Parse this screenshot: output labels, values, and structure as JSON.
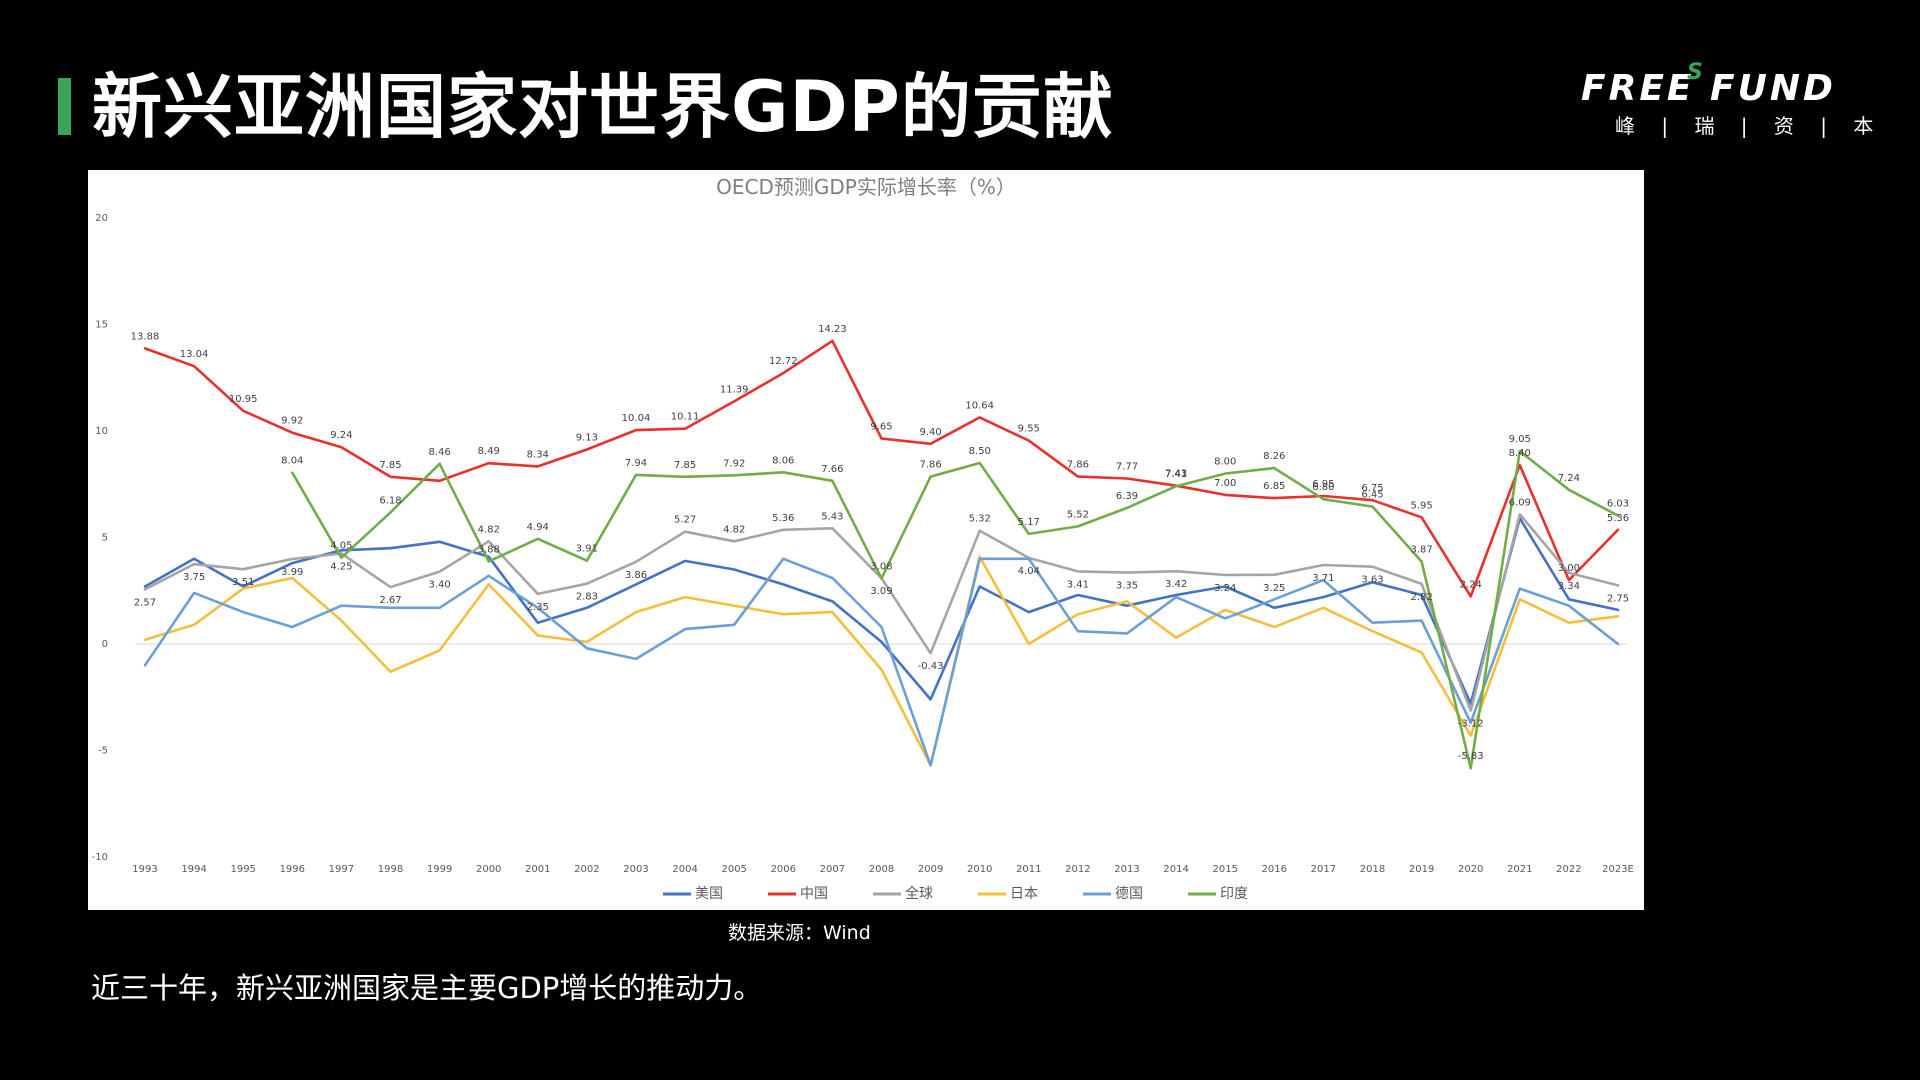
{
  "header": {
    "title": "新兴亚洲国家对世界GDP的贡献"
  },
  "logo": {
    "main_text": "FREE FUND",
    "superscript": "S",
    "subtitle": "峰 | 瑞 | 资 | 本"
  },
  "source_note": "数据来源：Wind",
  "body_text": "近三十年，新兴亚洲国家是主要GDP增长的推动力。",
  "colors": {
    "accent": "#3aa655",
    "background": "#000000",
    "chart_bg": "#ffffff"
  },
  "chart_data": {
    "type": "line",
    "title": "OECD预测GDP实际增长率（%）",
    "xlabel": "",
    "ylabel": "",
    "ylim": [
      -10,
      20
    ],
    "yticks": [
      20,
      15,
      10,
      5,
      0,
      -5,
      -10
    ],
    "grid": false,
    "legend_position": "bottom",
    "categories": [
      "1993",
      "1994",
      "1995",
      "1996",
      "1997",
      "1998",
      "1999",
      "2000",
      "2001",
      "2002",
      "2003",
      "2004",
      "2005",
      "2006",
      "2007",
      "2008",
      "2009",
      "2010",
      "2011",
      "2012",
      "2013",
      "2014",
      "2015",
      "2016",
      "2017",
      "2018",
      "2019",
      "2020",
      "2021",
      "2022",
      "2023E"
    ],
    "series": [
      {
        "name": "美国",
        "color": "#4472c4",
        "labeled": false,
        "values": [
          2.7,
          4.0,
          2.7,
          3.8,
          4.4,
          4.5,
          4.8,
          4.1,
          1.0,
          1.7,
          2.8,
          3.9,
          3.5,
          2.8,
          2.0,
          0.1,
          -2.6,
          2.7,
          1.5,
          2.3,
          1.8,
          2.3,
          2.7,
          1.7,
          2.2,
          2.9,
          2.3,
          -2.8,
          5.9,
          2.1,
          1.6
        ]
      },
      {
        "name": "中国",
        "color": "#e8312a",
        "labeled": true,
        "values": [
          13.88,
          13.04,
          10.95,
          9.92,
          9.24,
          7.85,
          7.66,
          8.49,
          8.34,
          9.13,
          10.04,
          10.11,
          11.39,
          12.72,
          14.23,
          9.65,
          9.4,
          10.64,
          9.55,
          7.86,
          7.77,
          7.43,
          7.0,
          6.85,
          6.95,
          6.75,
          5.95,
          2.24,
          8.4,
          3.0,
          5.36
        ],
        "labels": [
          "13.88",
          "13.04",
          "10.95",
          "9.92",
          "9.24",
          "7.85",
          "",
          "8.49",
          "8.34",
          "9.13",
          "10.04",
          "10.11",
          "11.39",
          "12.72",
          "14.23",
          "9.65",
          "9.40",
          "10.64",
          "9.55",
          "7.86",
          "7.77",
          "7.43",
          "7.00",
          "6.85",
          "6.95",
          "6.75",
          "5.95",
          "2.24",
          "8.40",
          "3.00",
          "5.36"
        ]
      },
      {
        "name": "全球",
        "color": "#a5a5a5",
        "labeled": true,
        "values": [
          2.57,
          3.75,
          3.51,
          3.99,
          4.25,
          2.67,
          3.4,
          4.82,
          2.35,
          2.83,
          3.86,
          5.27,
          4.82,
          5.36,
          5.43,
          3.09,
          -0.43,
          5.32,
          4.04,
          3.41,
          3.35,
          3.42,
          3.24,
          3.25,
          3.71,
          3.63,
          2.82,
          -3.12,
          6.09,
          3.34,
          2.75
        ],
        "labels": [
          "2.57",
          "3.75",
          "3.51",
          "3.99",
          "4.25",
          "2.67",
          "3.40",
          "4.82",
          "2.35",
          "2.83",
          "3.86",
          "5.27",
          "4.82",
          "5.36",
          "5.43",
          "3.09",
          "-0.43",
          "5.32",
          "4.04",
          "3.41",
          "3.35",
          "3.42",
          "3.24",
          "3.25",
          "3.71",
          "3.63",
          "2.82",
          "-3.12",
          "6.09",
          "3.34",
          "2.75"
        ]
      },
      {
        "name": "日本",
        "color": "#f5be3c",
        "labeled": false,
        "values": [
          0.2,
          0.9,
          2.6,
          3.1,
          1.1,
          -1.3,
          -0.3,
          2.8,
          0.4,
          0.1,
          1.5,
          2.2,
          1.8,
          1.4,
          1.5,
          -1.2,
          -5.7,
          4.1,
          0.0,
          1.4,
          2.0,
          0.3,
          1.6,
          0.8,
          1.7,
          0.6,
          -0.4,
          -4.3,
          2.1,
          1.0,
          1.3
        ]
      },
      {
        "name": "德国",
        "color": "#6a9fd8",
        "labeled": false,
        "values": [
          -1.0,
          2.4,
          1.5,
          0.8,
          1.8,
          1.7,
          1.7,
          3.2,
          1.7,
          -0.2,
          -0.7,
          0.7,
          0.9,
          4.0,
          3.1,
          0.8,
          -5.7,
          4.0,
          4.0,
          0.6,
          0.5,
          2.2,
          1.2,
          2.1,
          3.0,
          1.0,
          1.1,
          -3.7,
          2.6,
          1.8,
          0.0
        ]
      },
      {
        "name": "印度",
        "color": "#70ad47",
        "labeled": true,
        "values": [
          null,
          null,
          null,
          8.04,
          4.05,
          6.18,
          8.46,
          3.88,
          4.94,
          3.91,
          7.94,
          7.85,
          7.92,
          8.06,
          7.66,
          3.08,
          7.86,
          8.5,
          5.17,
          5.52,
          6.39,
          7.41,
          8.0,
          8.26,
          6.8,
          6.45,
          3.87,
          -5.83,
          9.05,
          7.24,
          6.03
        ],
        "labels": [
          "",
          "",
          "",
          "8.04",
          "4.05",
          "6.18",
          "8.46",
          "3.88",
          "4.94",
          "3.91",
          "7.94",
          "7.85",
          "7.92",
          "8.06",
          "7.66",
          "3.08",
          "7.86",
          "8.50",
          "5.17",
          "5.52",
          "6.39",
          "7.41",
          "8.00",
          "8.26",
          "6.80",
          "6.45",
          "3.87",
          "-5.83",
          "9.05",
          "7.24",
          "6.03"
        ]
      }
    ]
  }
}
